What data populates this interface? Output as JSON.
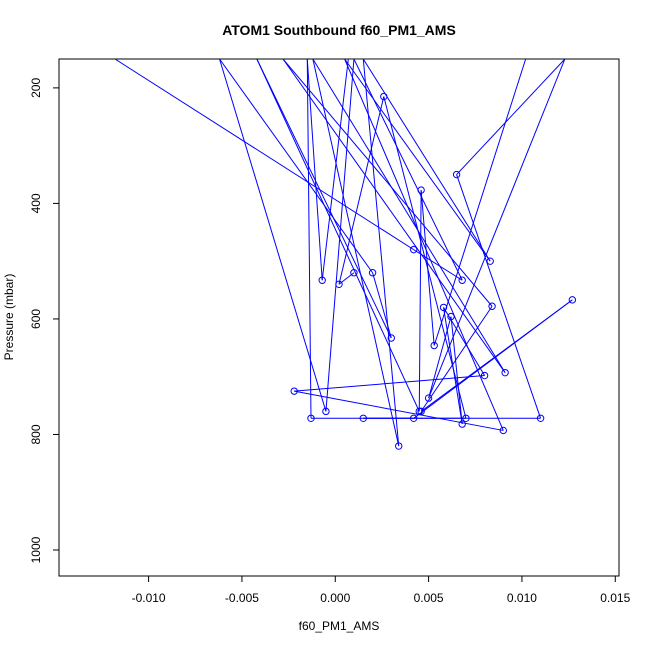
{
  "chart_data": {
    "type": "line",
    "title": "ATOM1 Southbound f60_PM1_AMS",
    "xlabel": "f60_PM1_AMS",
    "ylabel": "Pressure (mbar)",
    "xlim": [
      -0.0148,
      0.0152
    ],
    "ylim": [
      1045,
      150
    ],
    "y_reversed": true,
    "x_ticks": [
      -0.01,
      -0.005,
      0.0,
      0.005,
      0.01,
      0.015
    ],
    "x_tick_labels": [
      "-0.010",
      "-0.005",
      "0.000",
      "0.005",
      "0.010",
      "0.015"
    ],
    "y_ticks": [
      200,
      400,
      600,
      800,
      1000
    ],
    "y_tick_labels": [
      "200",
      "400",
      "600",
      "800",
      "1000"
    ],
    "grid": false,
    "line_color": "#0000ff",
    "marker": "open-circle",
    "series": [
      {
        "name": "",
        "points": [
          {
            "x": -0.0118,
            "y": 150,
            "marker": false
          },
          {
            "x": 0.0042,
            "y": 480,
            "marker": true
          },
          {
            "x": 0.0068,
            "y": 533,
            "marker": true
          },
          {
            "x": 0.001,
            "y": 150,
            "marker": false
          },
          {
            "x": -0.0005,
            "y": 760,
            "marker": true
          },
          {
            "x": -0.0062,
            "y": 150,
            "marker": false
          },
          {
            "x": 0.002,
            "y": 520,
            "marker": true
          },
          {
            "x": 0.003,
            "y": 633,
            "marker": true
          },
          {
            "x": -0.0042,
            "y": 150,
            "marker": false
          },
          {
            "x": 0.0045,
            "y": 760,
            "marker": true
          },
          {
            "x": 0.0046,
            "y": 377,
            "marker": true
          },
          {
            "x": 0.0053,
            "y": 646,
            "marker": true
          },
          {
            "x": 0.0102,
            "y": 150,
            "marker": false
          },
          {
            "x": 0.0007,
            "y": 150,
            "marker": false
          },
          {
            "x": -0.0007,
            "y": 533,
            "marker": true
          },
          {
            "x": -0.0015,
            "y": 150,
            "marker": false
          },
          {
            "x": -0.0013,
            "y": 772,
            "marker": true
          },
          {
            "x": 0.011,
            "y": 772,
            "marker": true
          },
          {
            "x": 0.0065,
            "y": 350,
            "marker": true
          },
          {
            "x": 0.0123,
            "y": 150,
            "marker": false
          },
          {
            "x": 0.005,
            "y": 737,
            "marker": true
          },
          {
            "x": 0.0062,
            "y": 596,
            "marker": true
          },
          {
            "x": 0.0068,
            "y": 782,
            "marker": true
          },
          {
            "x": 0.0058,
            "y": 580,
            "marker": true
          },
          {
            "x": 0.008,
            "y": 698,
            "marker": true
          },
          {
            "x": -0.0022,
            "y": 725,
            "marker": true
          },
          {
            "x": 0.009,
            "y": 793,
            "marker": true
          },
          {
            "x": 0.0005,
            "y": 150,
            "marker": false
          },
          {
            "x": 0.0083,
            "y": 500,
            "marker": true
          },
          {
            "x": 0.0015,
            "y": 150,
            "marker": false
          },
          {
            "x": 0.0034,
            "y": 820,
            "marker": true
          },
          {
            "x": -0.0012,
            "y": 150,
            "marker": false
          },
          {
            "x": 0.0091,
            "y": 693,
            "marker": true
          },
          {
            "x": -0.0028,
            "y": 150,
            "marker": false
          },
          {
            "x": 0.0084,
            "y": 578,
            "marker": true
          },
          {
            "x": 0.0046,
            "y": 760,
            "marker": true
          },
          {
            "x": 0.0127,
            "y": 567,
            "marker": true
          },
          {
            "x": 0.0042,
            "y": 772,
            "marker": true
          },
          {
            "x": 0.0015,
            "y": 772,
            "marker": true
          },
          {
            "x": 0.007,
            "y": 772,
            "marker": true
          },
          {
            "x": 0.0026,
            "y": 215,
            "marker": true
          },
          {
            "x": 0.0002,
            "y": 540,
            "marker": true
          },
          {
            "x": 0.001,
            "y": 520,
            "marker": true
          }
        ]
      }
    ]
  }
}
